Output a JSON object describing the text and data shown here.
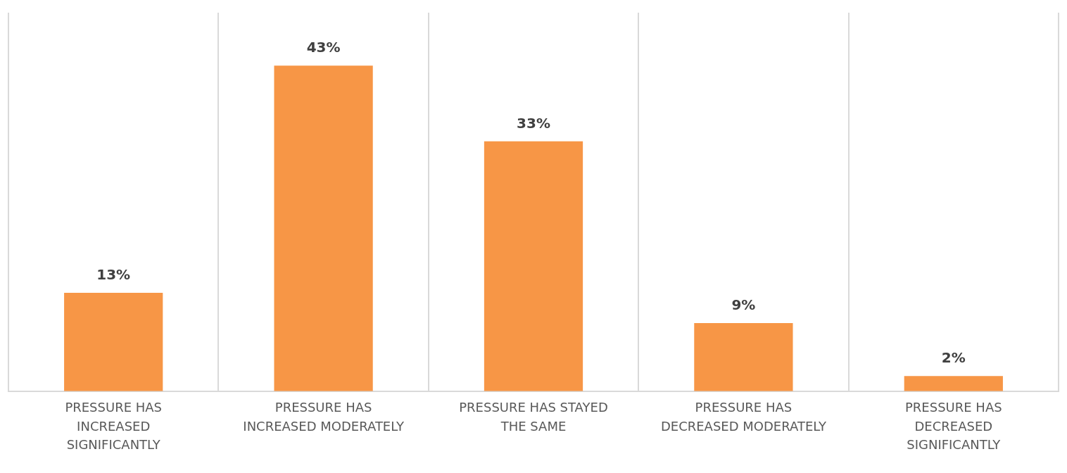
{
  "chart_data": {
    "type": "bar",
    "categories": [
      "PRESSURE HAS INCREASED SIGNIFICANTLY",
      "PRESSURE HAS INCREASED MODERATELY",
      "PRESSURE HAS STAYED THE SAME",
      "PRESSURE HAS DECREASED MODERATELY",
      "PRESSURE HAS DECREASED SIGNIFICANTLY"
    ],
    "values": [
      13,
      43,
      33,
      9,
      2
    ],
    "value_labels": [
      "13%",
      "43%",
      "33%",
      "9%",
      "2%"
    ],
    "color": "#f79646",
    "ylim": [
      0,
      50
    ],
    "tick_labels": "x",
    "grid": "x",
    "legend": false
  }
}
